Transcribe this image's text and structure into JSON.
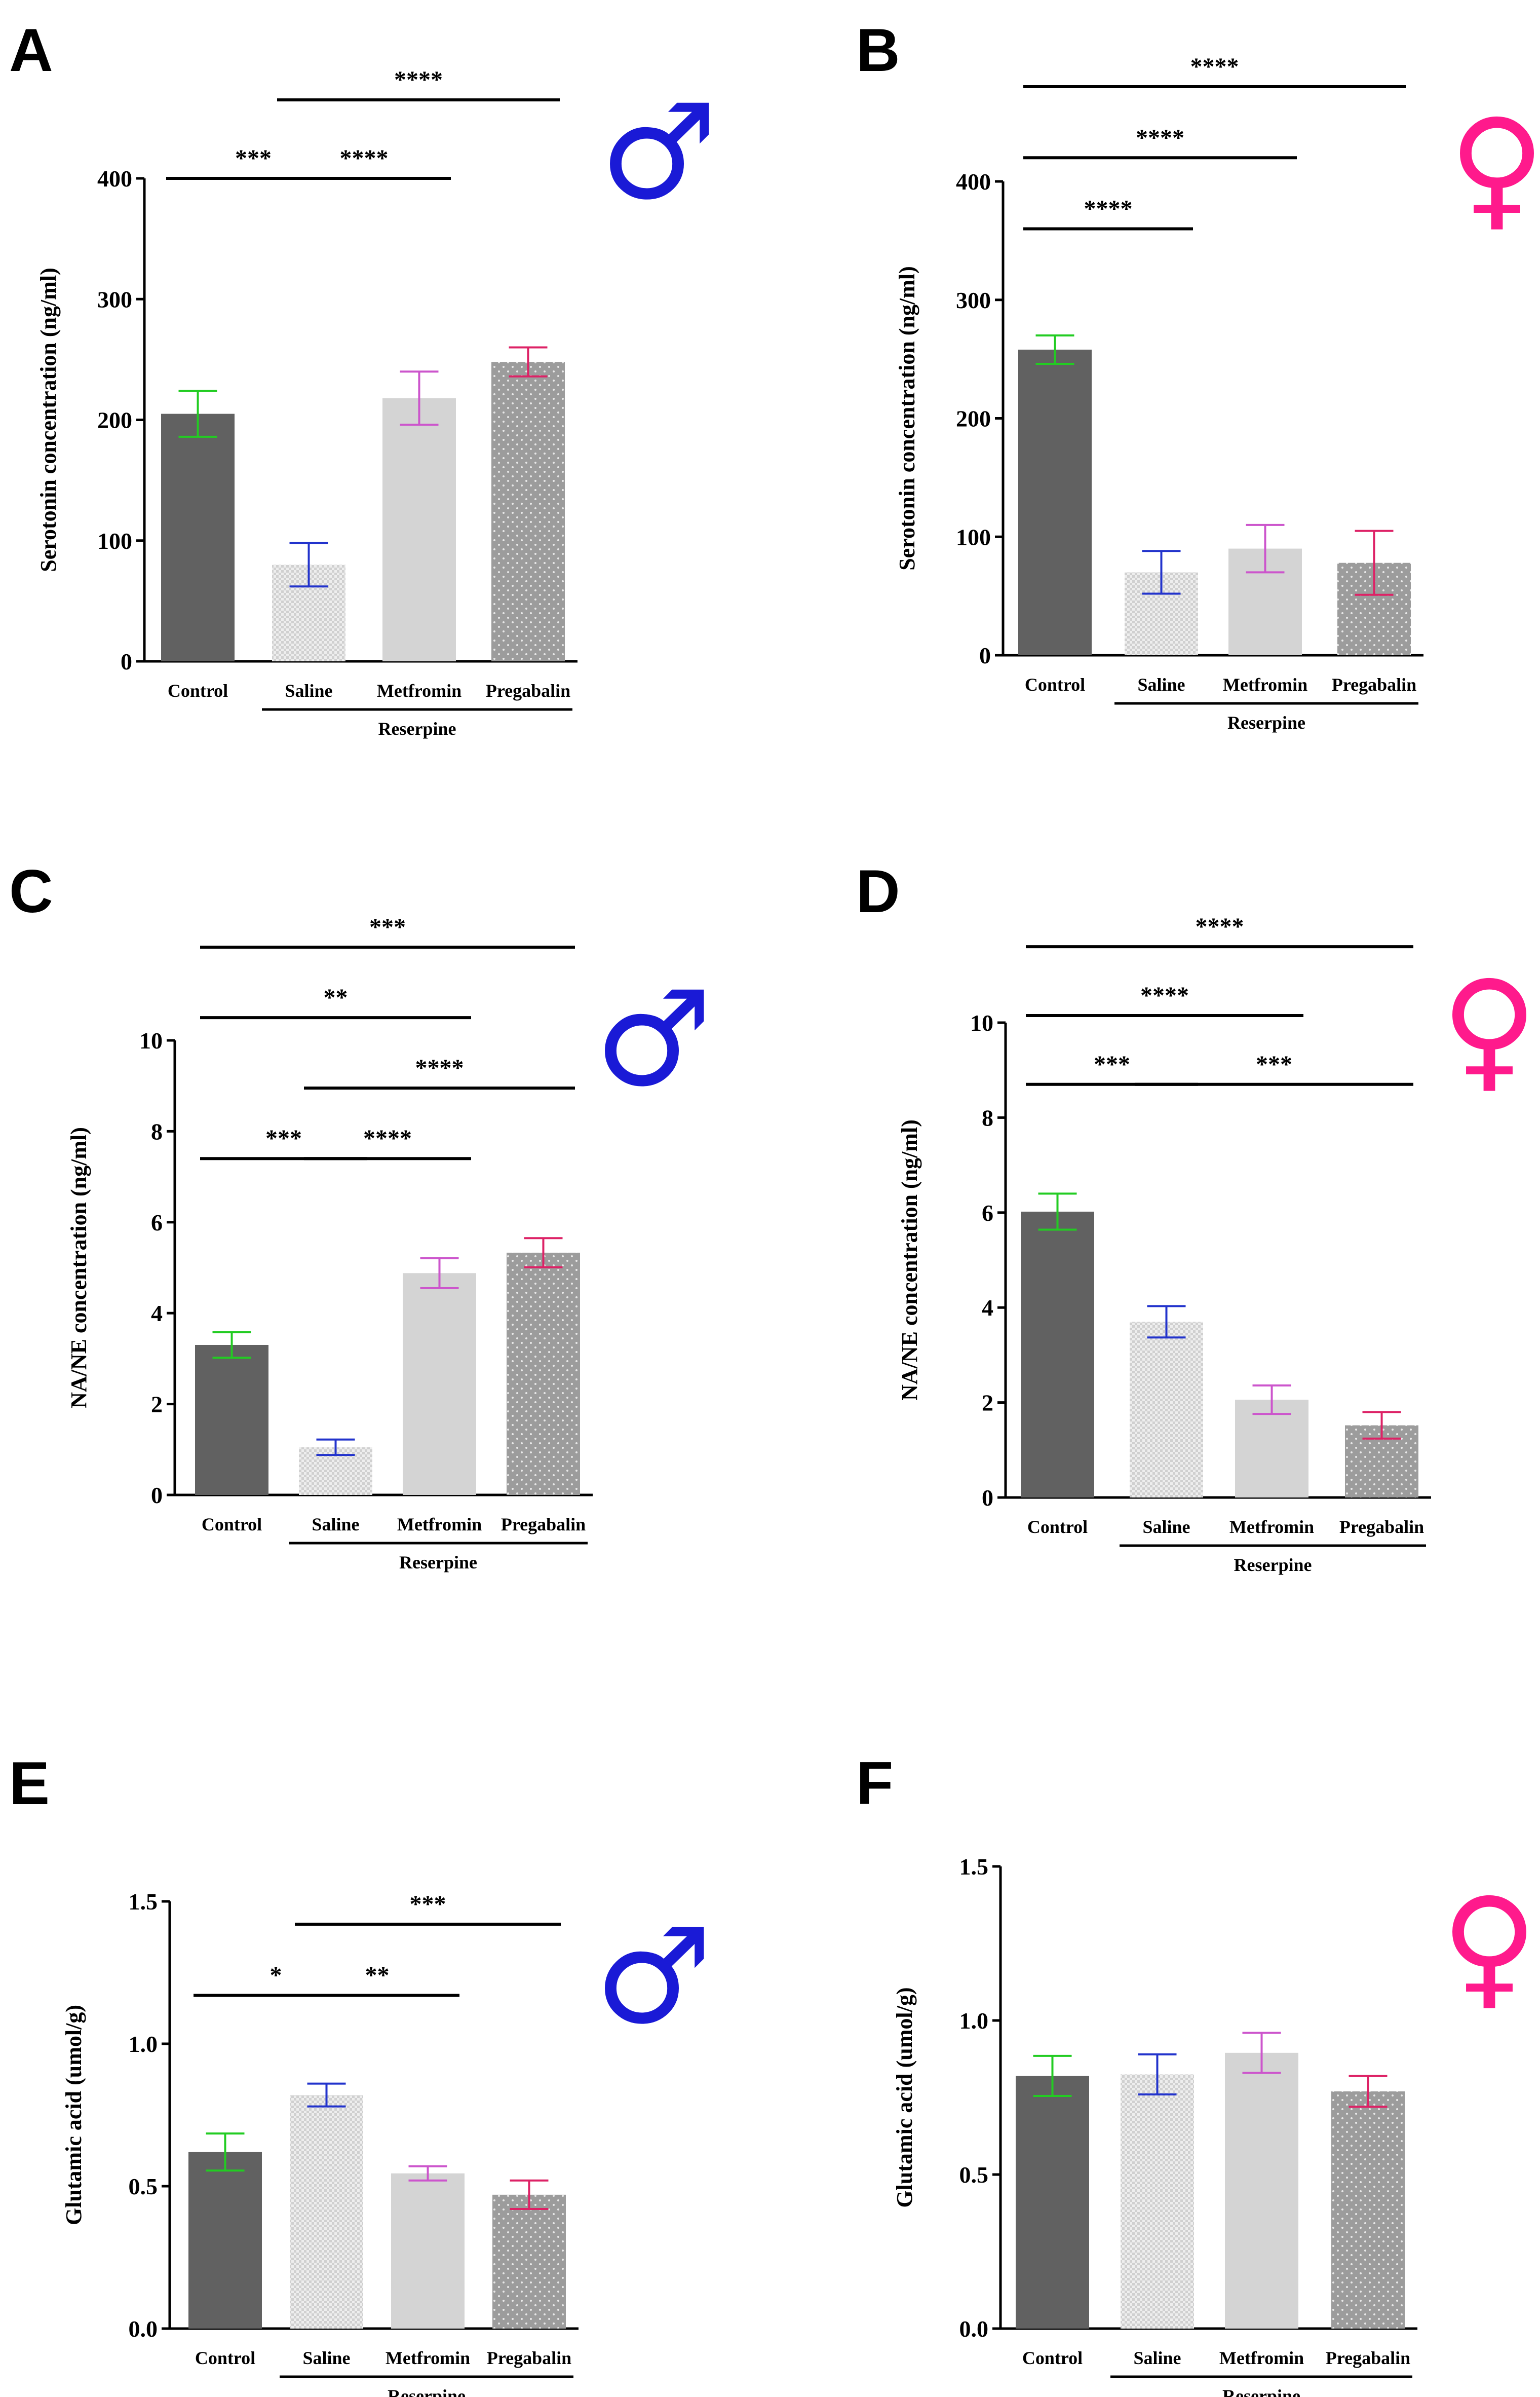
{
  "colors": {
    "bar_control": "#616161",
    "bar_saline": "#e6e6e6",
    "bar_metformin": "#d4d4d4",
    "bar_pregabalin": "#9c9c9c",
    "err_control": "#22cc22",
    "err_saline": "#2233cc",
    "err_metformin": "#cc55cc",
    "err_pregabalin": "#dd2266",
    "male_symbol": "#1a1ad6",
    "female_symbol": "#ff1a8c"
  },
  "chart_data": [
    {
      "panel": "A",
      "type": "bar",
      "sex_symbol": "♂",
      "sex_icon": "male-symbol-icon",
      "ylabel": "Serotonin concentration (ng/ml)",
      "categories": [
        "Control",
        "Saline",
        "Metfromin",
        "Pregabalin"
      ],
      "group_label": "Reserpine",
      "values": [
        205,
        80,
        218,
        248
      ],
      "errors": [
        19,
        18,
        22,
        12
      ],
      "ylim": [
        0,
        400
      ],
      "yticks": [
        "0",
        "100",
        "200",
        "300",
        "400"
      ],
      "comparisons": [
        {
          "from": 0,
          "to": 1,
          "label": "***",
          "level": 400
        },
        {
          "from": 1,
          "to": 2,
          "label": "****",
          "level": 400
        },
        {
          "from": 1,
          "to": 3,
          "label": "****",
          "level": 465
        }
      ]
    },
    {
      "panel": "B",
      "type": "bar",
      "sex_symbol": "♀",
      "sex_icon": "female-symbol-icon",
      "ylabel": "Serotonin concentration (ng/ml)",
      "categories": [
        "Control",
        "Saline",
        "Metfromin",
        "Pregabalin"
      ],
      "group_label": "Reserpine",
      "values": [
        258,
        70,
        90,
        78
      ],
      "errors": [
        12,
        18,
        20,
        27
      ],
      "ylim": [
        0,
        400
      ],
      "yticks": [
        "0",
        "100",
        "200",
        "300",
        "400"
      ],
      "comparisons": [
        {
          "from": 0,
          "to": 1,
          "label": "****",
          "level": 360
        },
        {
          "from": 0,
          "to": 2,
          "label": "****",
          "level": 420
        },
        {
          "from": 0,
          "to": 3,
          "label": "****",
          "level": 480
        }
      ]
    },
    {
      "panel": "C",
      "type": "bar",
      "sex_symbol": "♂",
      "sex_icon": "male-symbol-icon",
      "ylabel": "NA/NE concentration (ng/ml)",
      "categories": [
        "Control",
        "Saline",
        "Metfromin",
        "Pregabalin"
      ],
      "group_label": "Reserpine",
      "values": [
        3.3,
        1.05,
        4.88,
        5.33
      ],
      "errors": [
        0.28,
        0.17,
        0.33,
        0.32
      ],
      "ylim": [
        0,
        10
      ],
      "yticks": [
        "0",
        "2",
        "4",
        "6",
        "8",
        "10"
      ],
      "comparisons": [
        {
          "from": 0,
          "to": 1,
          "label": "***",
          "level": 7.4
        },
        {
          "from": 1,
          "to": 2,
          "label": "****",
          "level": 7.4
        },
        {
          "from": 1,
          "to": 3,
          "label": "****",
          "level": 8.95
        },
        {
          "from": 0,
          "to": 2,
          "label": "**",
          "level": 10.5
        },
        {
          "from": 0,
          "to": 3,
          "label": "***",
          "level": 12.05
        }
      ]
    },
    {
      "panel": "D",
      "type": "bar",
      "sex_symbol": "♀",
      "sex_icon": "female-symbol-icon",
      "ylabel": "NA/NE concentration (ng/ml)",
      "categories": [
        "Control",
        "Saline",
        "Metfromin",
        "Pregabalin"
      ],
      "group_label": "Reserpine",
      "values": [
        6.02,
        3.7,
        2.06,
        1.52
      ],
      "errors": [
        0.38,
        0.33,
        0.3,
        0.28
      ],
      "ylim": [
        0,
        10
      ],
      "yticks": [
        "0",
        "2",
        "4",
        "6",
        "8",
        "10"
      ],
      "comparisons": [
        {
          "from": 0,
          "to": 1,
          "label": "***",
          "level": 8.7
        },
        {
          "from": 1,
          "to": 3,
          "label": "***",
          "level": 8.7
        },
        {
          "from": 0,
          "to": 2,
          "label": "****",
          "level": 10.15
        },
        {
          "from": 0,
          "to": 3,
          "label": "****",
          "level": 11.6
        }
      ]
    },
    {
      "panel": "E",
      "type": "bar",
      "sex_symbol": "♂",
      "sex_icon": "male-symbol-icon",
      "ylabel": "Glutamic acid (umol/g)",
      "categories": [
        "Control",
        "Saline",
        "Metfromin",
        "Pregabalin"
      ],
      "group_label": "Reserpine",
      "values": [
        0.62,
        0.82,
        0.545,
        0.47
      ],
      "errors": [
        0.065,
        0.04,
        0.025,
        0.05
      ],
      "ylim": [
        0,
        1.5
      ],
      "yticks": [
        "0.0",
        "0.5",
        "1.0",
        "1.5"
      ],
      "comparisons": [
        {
          "from": 0,
          "to": 1,
          "label": "*",
          "level": 1.17
        },
        {
          "from": 1,
          "to": 2,
          "label": "**",
          "level": 1.17
        },
        {
          "from": 1,
          "to": 3,
          "label": "***",
          "level": 1.42
        }
      ]
    },
    {
      "panel": "F",
      "type": "bar",
      "sex_symbol": "♀",
      "sex_icon": "female-symbol-icon",
      "ylabel": "Glutamic acid (umol/g)",
      "categories": [
        "Control",
        "Saline",
        "Metfromin",
        "Pregabalin"
      ],
      "group_label": "Reserpine",
      "values": [
        0.82,
        0.825,
        0.895,
        0.77
      ],
      "errors": [
        0.065,
        0.065,
        0.065,
        0.05
      ],
      "ylim": [
        0,
        1.5
      ],
      "yticks": [
        "0.0",
        "0.5",
        "1.0",
        "1.5"
      ],
      "comparisons": []
    }
  ]
}
